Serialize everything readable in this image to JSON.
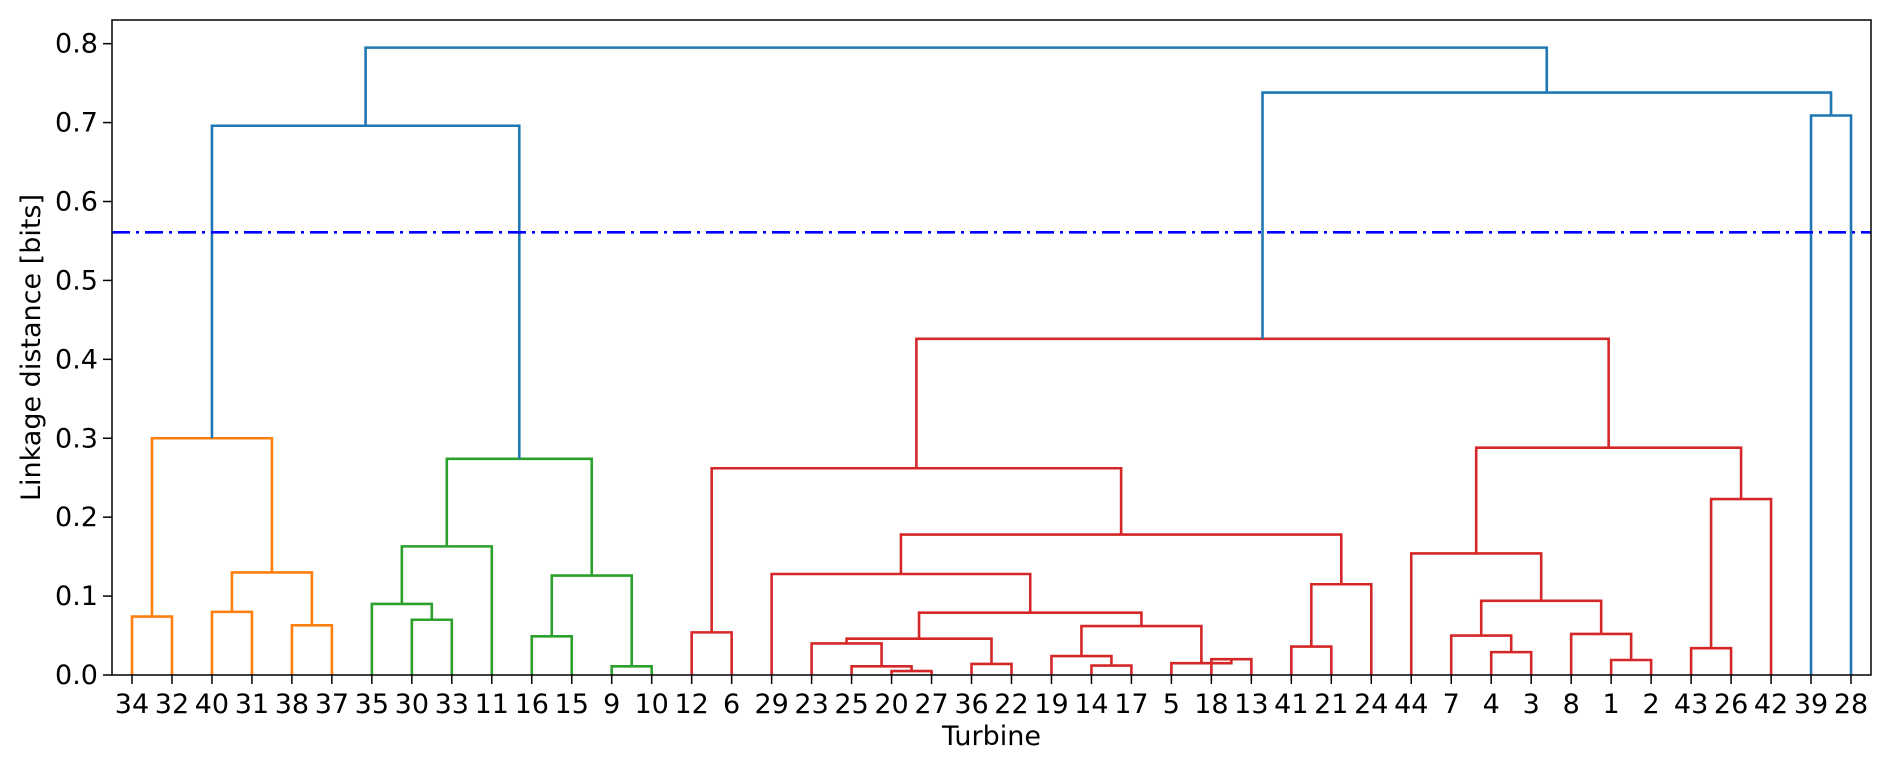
{
  "chart_data": {
    "type": "dendrogram",
    "xlabel": "Turbine",
    "ylabel": "Linkage distance [bits]",
    "ylim": [
      0,
      0.83
    ],
    "yticks": [
      "0.0",
      "0.1",
      "0.2",
      "0.3",
      "0.4",
      "0.5",
      "0.6",
      "0.7",
      "0.8"
    ],
    "leaves": [
      "34",
      "32",
      "40",
      "31",
      "38",
      "37",
      "35",
      "30",
      "33",
      "11",
      "16",
      "15",
      "9",
      "10",
      "12",
      "6",
      "29",
      "23",
      "25",
      "20",
      "27",
      "36",
      "22",
      "19",
      "14",
      "17",
      "5",
      "18",
      "13",
      "41",
      "21",
      "24",
      "44",
      "7",
      "4",
      "3",
      "8",
      "1",
      "2",
      "43",
      "26",
      "42",
      "39",
      "28"
    ],
    "cut_threshold": 0.561,
    "colors": {
      "orange": "#ff7f0e",
      "green": "#2ca02c",
      "red": "#d62728",
      "blue": "#1f77b4",
      "threshold": "#0000ff"
    },
    "links": [
      {
        "a": 0,
        "b": 1,
        "h": 0.074,
        "color": "orange"
      },
      {
        "a": 2,
        "b": 3,
        "h": 0.08,
        "color": "orange"
      },
      {
        "a": 4,
        "b": 5,
        "h": 0.063,
        "color": "orange"
      },
      {
        "a": 2.5,
        "b": 4.5,
        "h": 0.13,
        "color": "orange"
      },
      {
        "a": 0.5,
        "b": 3.5,
        "h": 0.3,
        "color": "orange"
      },
      {
        "a": 7,
        "b": 8,
        "h": 0.07,
        "color": "green"
      },
      {
        "a": 6,
        "b": 7.5,
        "h": 0.09,
        "color": "green"
      },
      {
        "a": 6.75,
        "b": 9,
        "h": 0.163,
        "color": "green"
      },
      {
        "a": 10,
        "b": 11,
        "h": 0.049,
        "color": "green"
      },
      {
        "a": 12,
        "b": 13,
        "h": 0.011,
        "color": "green"
      },
      {
        "a": 10.5,
        "b": 12.5,
        "h": 0.126,
        "color": "green"
      },
      {
        "a": 7.875,
        "b": 11.5,
        "h": 0.274,
        "color": "green"
      },
      {
        "a": 14,
        "b": 15,
        "h": 0.054,
        "color": "red"
      },
      {
        "a": 19,
        "b": 20,
        "h": 0.005,
        "color": "red"
      },
      {
        "a": 18,
        "b": 19.5,
        "h": 0.011,
        "color": "red"
      },
      {
        "a": 17,
        "b": 18.75,
        "h": 0.04,
        "color": "red"
      },
      {
        "a": 21,
        "b": 22,
        "h": 0.014,
        "color": "red"
      },
      {
        "a": 17.875,
        "b": 21.5,
        "h": 0.046,
        "color": "red"
      },
      {
        "a": 24,
        "b": 25,
        "h": 0.012,
        "color": "red"
      },
      {
        "a": 23,
        "b": 24.5,
        "h": 0.024,
        "color": "red"
      },
      {
        "a": 27,
        "b": 28,
        "h": 0.02,
        "color": "red"
      },
      {
        "a": 26,
        "b": 27.5,
        "h": 0.015,
        "color": "red"
      },
      {
        "a": 23.75,
        "b": 26.75,
        "h": 0.062,
        "color": "red"
      },
      {
        "a": 19.6875,
        "b": 25.25,
        "h": 0.079,
        "color": "red"
      },
      {
        "a": 16,
        "b": 22.46875,
        "h": 0.128,
        "color": "red"
      },
      {
        "a": 29,
        "b": 30,
        "h": 0.036,
        "color": "red"
      },
      {
        "a": 29.5,
        "b": 31,
        "h": 0.115,
        "color": "red"
      },
      {
        "a": 19.234375,
        "b": 30.25,
        "h": 0.178,
        "color": "red"
      },
      {
        "a": 14.5,
        "b": 24.7421875,
        "h": 0.262,
        "color": "red"
      },
      {
        "a": 34,
        "b": 35,
        "h": 0.029,
        "color": "red"
      },
      {
        "a": 33,
        "b": 34.5,
        "h": 0.05,
        "color": "red"
      },
      {
        "a": 37,
        "b": 38,
        "h": 0.019,
        "color": "red"
      },
      {
        "a": 36,
        "b": 37.5,
        "h": 0.052,
        "color": "red"
      },
      {
        "a": 33.75,
        "b": 36.75,
        "h": 0.094,
        "color": "red"
      },
      {
        "a": 32,
        "b": 35.25,
        "h": 0.154,
        "color": "red"
      },
      {
        "a": 39,
        "b": 40,
        "h": 0.034,
        "color": "red"
      },
      {
        "a": 39.5,
        "b": 41,
        "h": 0.223,
        "color": "red"
      },
      {
        "a": 33.625,
        "b": 40.25,
        "h": 0.288,
        "color": "red"
      },
      {
        "a": 19.62109375,
        "b": 36.9375,
        "h": 0.426,
        "color": "red"
      },
      {
        "a": 42,
        "b": 43,
        "h": 0.709,
        "color": "blue"
      },
      {
        "a": 28.279296875,
        "b": 42.5,
        "h": 0.738,
        "color": "blue"
      },
      {
        "a": 2,
        "b": 9.6875,
        "h": 0.696,
        "color": "blue"
      },
      {
        "a": 5.84375,
        "b": 35.3896484375,
        "h": 0.795,
        "color": "blue"
      }
    ]
  }
}
